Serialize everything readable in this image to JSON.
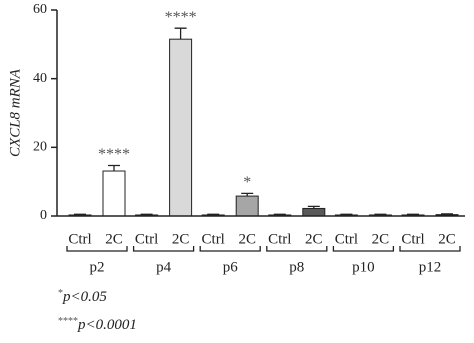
{
  "chart_data": {
    "type": "bar",
    "ylabel": "CXCL8 mRNA",
    "categories": [
      "p2",
      "p4",
      "p6",
      "p8",
      "p10",
      "p12"
    ],
    "series": [
      {
        "name": "Ctrl",
        "color": "#222222",
        "values": [
          0.3,
          0.3,
          0.3,
          0.3,
          0.3,
          0.3
        ],
        "errors": [
          0.2,
          0.2,
          0.2,
          0.2,
          0.2,
          0.2
        ]
      },
      {
        "name": "2C",
        "colors": [
          "#ffffff",
          "#d9d9d9",
          "#a6a6a6",
          "#595959",
          "#333333",
          "#111111"
        ],
        "values": [
          13.1,
          51.5,
          5.8,
          2.2,
          0.3,
          0.4
        ],
        "errors": [
          1.6,
          3.2,
          0.8,
          0.6,
          0.2,
          0.2
        ],
        "annotations": [
          "****",
          "****",
          "*",
          null,
          null,
          null
        ]
      }
    ],
    "ylim": [
      0,
      60
    ],
    "yticks": [
      0,
      20,
      40,
      60
    ],
    "notes": [
      {
        "stars": "*",
        "text": "p<0.05"
      },
      {
        "stars": "****",
        "text": "p<0.0001"
      }
    ]
  }
}
